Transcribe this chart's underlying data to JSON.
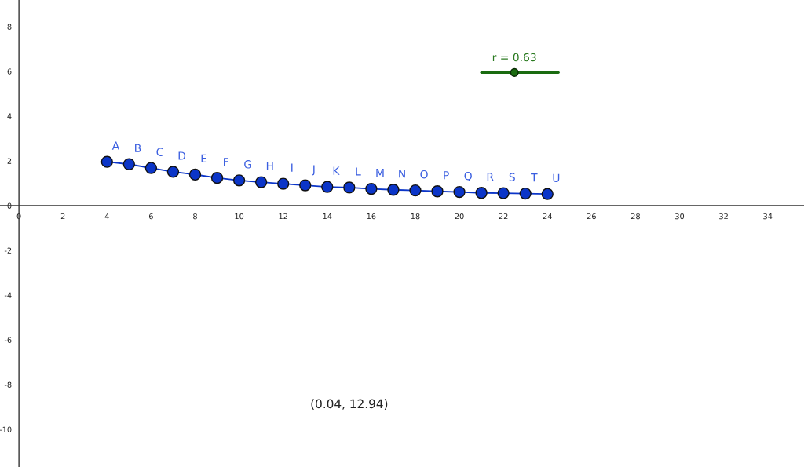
{
  "chart_data": {
    "type": "line",
    "x": [
      4,
      5,
      6,
      7,
      8,
      9,
      10,
      11,
      12,
      13,
      14,
      15,
      16,
      17,
      18,
      19,
      20,
      21,
      22,
      23,
      24
    ],
    "series": [
      {
        "color": "#0b35c8",
        "values": [
          1.96,
          1.85,
          1.68,
          1.51,
          1.39,
          1.24,
          1.13,
          1.05,
          0.98,
          0.91,
          0.84,
          0.81,
          0.75,
          0.71,
          0.68,
          0.64,
          0.61,
          0.57,
          0.56,
          0.54,
          0.52
        ]
      }
    ],
    "marker": "circle",
    "line_style": "solid",
    "legend": false,
    "xlim": [
      -0.86,
      35.65
    ],
    "ylim": [
      -11.68,
      9.19
    ],
    "xticks": [
      0,
      2,
      4,
      6,
      8,
      10,
      12,
      14,
      16,
      18,
      20,
      22,
      24,
      26,
      28,
      30,
      32,
      34
    ],
    "yticks": [
      -10,
      -8,
      -6,
      -4,
      -2,
      0,
      2,
      4,
      6,
      8
    ],
    "annotations": [
      {
        "text": "A",
        "x": 4,
        "y": 1.96
      },
      {
        "text": "B",
        "x": 5,
        "y": 1.85
      },
      {
        "text": "C",
        "x": 6,
        "y": 1.68
      },
      {
        "text": "D",
        "x": 7,
        "y": 1.51
      },
      {
        "text": "E",
        "x": 8,
        "y": 1.39
      },
      {
        "text": "F",
        "x": 9,
        "y": 1.24
      },
      {
        "text": "G",
        "x": 10,
        "y": 1.13
      },
      {
        "text": "H",
        "x": 11,
        "y": 1.05
      },
      {
        "text": "I",
        "x": 12,
        "y": 0.98
      },
      {
        "text": "J",
        "x": 13,
        "y": 0.91
      },
      {
        "text": "K",
        "x": 14,
        "y": 0.84
      },
      {
        "text": "L",
        "x": 15,
        "y": 0.81
      },
      {
        "text": "M",
        "x": 16,
        "y": 0.75
      },
      {
        "text": "N",
        "x": 17,
        "y": 0.71
      },
      {
        "text": "O",
        "x": 18,
        "y": 0.68
      },
      {
        "text": "P",
        "x": 19,
        "y": 0.64
      },
      {
        "text": "Q",
        "x": 20,
        "y": 0.61
      },
      {
        "text": "R",
        "x": 21,
        "y": 0.57
      },
      {
        "text": "S",
        "x": 22,
        "y": 0.56
      },
      {
        "text": "T",
        "x": 23,
        "y": 0.54
      },
      {
        "text": "U",
        "x": 24,
        "y": 0.52
      },
      "r = 0.63",
      "(0.04, 12.94)"
    ]
  }
}
